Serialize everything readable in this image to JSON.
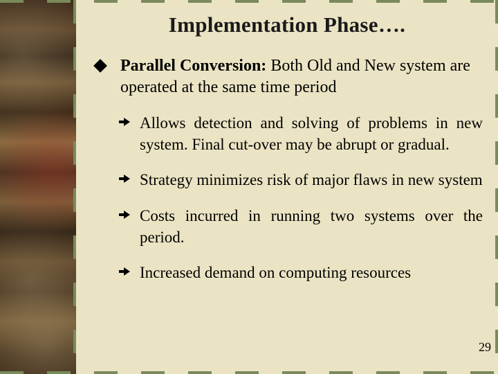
{
  "slide": {
    "title": "Implementation Phase….",
    "main_bullet": {
      "lead": "Parallel Conversion:",
      "rest": " Both Old and New system are operated at the same time period"
    },
    "sub_bullets": [
      {
        "text": "Allows detection and solving of problems in new system. Final cut-over may be abrupt or gradual."
      },
      {
        "text": "Strategy minimizes risk of major flaws in new system"
      },
      {
        "text": "Costs incurred in running two systems over the period."
      },
      {
        "text": "Increased demand on computing resources"
      }
    ],
    "page_number": "29"
  },
  "colors": {
    "background": "#ebe4c4",
    "dash": "#7a8a5a",
    "text": "#000000"
  }
}
